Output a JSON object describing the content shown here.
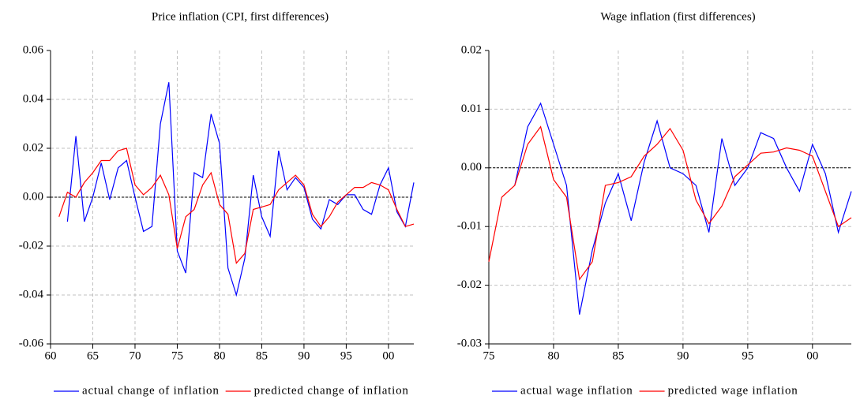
{
  "chart_data": [
    {
      "type": "line",
      "title": "Price inflation (CPI, first differences)",
      "x": [
        1961,
        1962,
        1963,
        1964,
        1965,
        1966,
        1967,
        1968,
        1969,
        1970,
        1971,
        1972,
        1973,
        1974,
        1975,
        1976,
        1977,
        1978,
        1979,
        1980,
        1981,
        1982,
        1983,
        1984,
        1985,
        1986,
        1987,
        1988,
        1989,
        1990,
        1991,
        1992,
        1993,
        1994,
        1995,
        1996,
        1997,
        1998,
        1999,
        2000,
        2001,
        2002,
        2003
      ],
      "series": [
        {
          "name": "actual change of inflation",
          "color": "#0000ff",
          "values": [
            null,
            -0.01,
            0.025,
            -0.01,
            0.0,
            0.014,
            -0.001,
            0.012,
            0.015,
            0.0,
            -0.014,
            -0.012,
            0.03,
            0.047,
            -0.022,
            -0.031,
            0.01,
            0.008,
            0.034,
            0.022,
            -0.029,
            -0.04,
            -0.025,
            0.009,
            -0.008,
            -0.016,
            0.019,
            0.003,
            0.008,
            0.004,
            -0.009,
            -0.013,
            -0.001,
            -0.003,
            0.001,
            0.001,
            -0.005,
            -0.007,
            0.005,
            0.012,
            -0.006,
            -0.012,
            0.006
          ]
        },
        {
          "name": "predicted change of inflation",
          "color": "#ff0000",
          "values": [
            -0.008,
            0.002,
            0.0,
            0.006,
            0.01,
            0.015,
            0.015,
            0.019,
            0.02,
            0.005,
            0.001,
            0.004,
            0.009,
            0.001,
            -0.021,
            -0.008,
            -0.005,
            0.005,
            0.01,
            -0.003,
            -0.007,
            -0.027,
            -0.023,
            -0.005,
            -0.004,
            -0.003,
            0.003,
            0.006,
            0.009,
            0.005,
            -0.007,
            -0.012,
            -0.008,
            -0.002,
            0.001,
            0.004,
            0.004,
            0.006,
            0.005,
            0.003,
            -0.005,
            -0.012,
            -0.011
          ]
        }
      ],
      "xlim": [
        1960,
        2003
      ],
      "xticks": [
        {
          "value": 1960,
          "label": "60"
        },
        {
          "value": 1965,
          "label": "65"
        },
        {
          "value": 1970,
          "label": "70"
        },
        {
          "value": 1975,
          "label": "75"
        },
        {
          "value": 1980,
          "label": "80"
        },
        {
          "value": 1985,
          "label": "85"
        },
        {
          "value": 1990,
          "label": "90"
        },
        {
          "value": 1995,
          "label": "95"
        },
        {
          "value": 2000,
          "label": "00"
        }
      ],
      "ylim": [
        -0.06,
        0.06
      ],
      "yticks": [
        {
          "value": -0.06,
          "label": "-0.06"
        },
        {
          "value": -0.04,
          "label": "-0.04"
        },
        {
          "value": -0.02,
          "label": "-0.02"
        },
        {
          "value": 0,
          "label": "0.00"
        },
        {
          "value": 0.02,
          "label": "0.02"
        },
        {
          "value": 0.04,
          "label": "0.04"
        },
        {
          "value": 0.06,
          "label": "0.06"
        }
      ],
      "grid": true,
      "legend": "bottom"
    },
    {
      "type": "line",
      "title": "Wage inflation (first differences)",
      "x": [
        1975,
        1976,
        1977,
        1978,
        1979,
        1980,
        1981,
        1982,
        1983,
        1984,
        1985,
        1986,
        1987,
        1988,
        1989,
        1990,
        1991,
        1992,
        1993,
        1994,
        1995,
        1996,
        1997,
        1998,
        1999,
        2000,
        2001,
        2002,
        2003
      ],
      "series": [
        {
          "name": "actual wage inflation",
          "color": "#0000ff",
          "values": [
            null,
            null,
            -0.003,
            0.007,
            0.011,
            0.004,
            -0.003,
            -0.025,
            -0.014,
            -0.006,
            -0.001,
            -0.009,
            0.001,
            0.008,
            0.0,
            -0.001,
            -0.003,
            -0.011,
            0.005,
            -0.003,
            0.0,
            0.006,
            0.005,
            0.0,
            -0.004,
            0.004,
            -0.001,
            -0.011,
            -0.004
          ]
        },
        {
          "name": "predicted wage inflation",
          "color": "#ff0000",
          "values": [
            -0.016,
            -0.005,
            -0.003,
            0.004,
            0.007,
            -0.002,
            -0.005,
            -0.019,
            -0.016,
            -0.003,
            -0.0025,
            -0.0015,
            0.002,
            0.004,
            0.0067,
            0.003,
            -0.0055,
            -0.0095,
            -0.0065,
            -0.0015,
            0.0005,
            0.0025,
            0.0027,
            0.0034,
            0.003,
            0.002,
            -0.004,
            -0.01,
            -0.0085
          ]
        }
      ],
      "xlim": [
        1975,
        2003
      ],
      "xticks": [
        {
          "value": 1975,
          "label": "75"
        },
        {
          "value": 1980,
          "label": "80"
        },
        {
          "value": 1985,
          "label": "85"
        },
        {
          "value": 1990,
          "label": "90"
        },
        {
          "value": 1995,
          "label": "95"
        },
        {
          "value": 2000,
          "label": "00"
        }
      ],
      "ylim": [
        -0.03,
        0.02
      ],
      "yticks": [
        {
          "value": -0.03,
          "label": "-0.03"
        },
        {
          "value": -0.02,
          "label": "-0.02"
        },
        {
          "value": -0.01,
          "label": "-0.01"
        },
        {
          "value": 0,
          "label": "0.00"
        },
        {
          "value": 0.01,
          "label": "0.01"
        },
        {
          "value": 0.02,
          "label": "0.02"
        }
      ],
      "grid": true,
      "legend": "bottom"
    }
  ]
}
